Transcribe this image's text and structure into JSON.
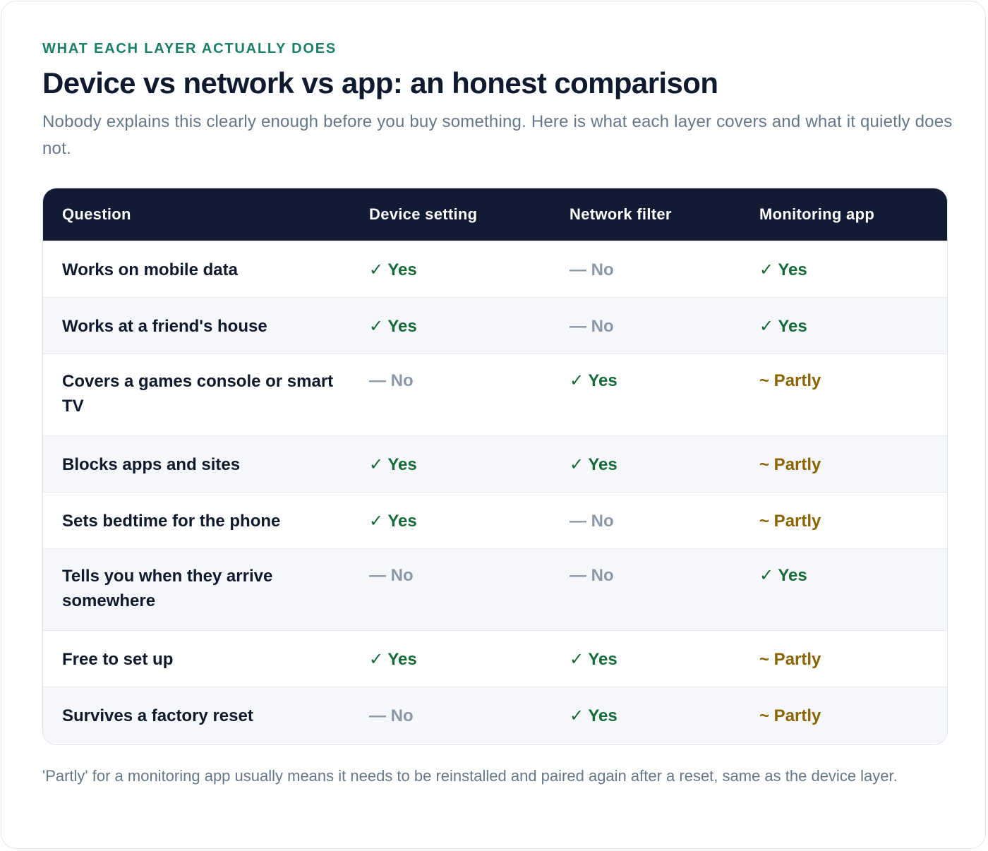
{
  "header": {
    "eyebrow": "WHAT EACH LAYER ACTUALLY DOES",
    "title": "Device vs network vs app: an honest comparison",
    "intro": "Nobody explains this clearly enough before you buy something. Here is what each layer covers and what it quietly does not."
  },
  "table": {
    "columns": [
      "Question",
      "Device setting",
      "Network filter",
      "Monitoring app"
    ],
    "rows": [
      {
        "question": "Works on mobile data",
        "device": "✓ Yes",
        "network": "— No",
        "app": "✓ Yes"
      },
      {
        "question": "Works at a friend's house",
        "device": "✓ Yes",
        "network": "— No",
        "app": "✓ Yes"
      },
      {
        "question": "Covers a games console or smart TV",
        "device": "— No",
        "network": "✓ Yes",
        "app": "~ Partly"
      },
      {
        "question": "Blocks apps and sites",
        "device": "✓ Yes",
        "network": "✓ Yes",
        "app": "~ Partly"
      },
      {
        "question": "Sets bedtime for the phone",
        "device": "✓ Yes",
        "network": "— No",
        "app": "~ Partly"
      },
      {
        "question": "Tells you when they arrive somewhere",
        "device": "— No",
        "network": "— No",
        "app": "✓ Yes"
      },
      {
        "question": "Free to set up",
        "device": "✓ Yes",
        "network": "✓ Yes",
        "app": "~ Partly"
      },
      {
        "question": "Survives a factory reset",
        "device": "— No",
        "network": "✓ Yes",
        "app": "~ Partly"
      }
    ]
  },
  "footnote": "'Partly' for a monitoring app usually means it needs to be reinstalled and paired again after a reset, same as the device layer.",
  "colors": {
    "accent": "#1a7f66",
    "header_bg": "#111b33",
    "yes": "#166a3a",
    "no": "#8b98a8",
    "partly": "#8a6400"
  }
}
